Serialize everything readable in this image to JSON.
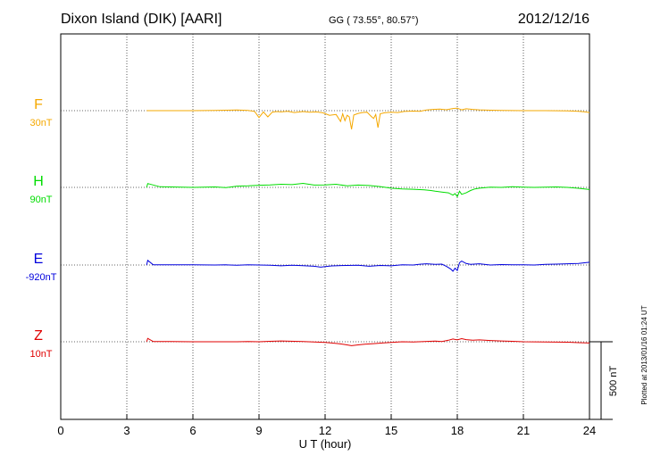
{
  "header": {
    "station": "Dixon Island (DIK)  [AARI]",
    "coords": "GG ( 73.55°,  80.57°)",
    "date": "2012/12/16"
  },
  "footer": {
    "plotted": "Plotted at 2013/01/16 01:24 UT"
  },
  "chart_data": {
    "type": "line",
    "xlabel": "U T (hour)",
    "xlim": [
      0,
      24
    ],
    "xticks": [
      0,
      3,
      6,
      9,
      12,
      15,
      18,
      21,
      24
    ],
    "scale_bar": "500 nT",
    "series": [
      {
        "name": "F",
        "baseline": "30nT",
        "color": "#f5a800",
        "x": [
          3.9,
          5,
          6,
          7,
          7.5,
          8,
          8.5,
          8.8,
          9,
          9.2,
          9.4,
          9.6,
          9.8,
          10,
          10.3,
          10.6,
          11,
          11.3,
          11.6,
          11.9,
          12.2,
          12.5,
          12.7,
          12.8,
          12.9,
          13,
          13.1,
          13.2,
          13.3,
          13.5,
          13.7,
          13.9,
          14.1,
          14.2,
          14.3,
          14.4,
          14.5,
          14.7,
          15,
          15.3,
          15.6,
          16,
          16.3,
          16.6,
          16.9,
          17.2,
          17.5,
          17.8,
          18,
          18.2,
          18.4,
          18.7,
          19,
          19.5,
          20,
          21,
          22,
          23,
          23.5,
          23.8,
          24
        ],
        "y": [
          0,
          0,
          0,
          2,
          3,
          4,
          2,
          -5,
          -45,
          -8,
          -40,
          -10,
          -6,
          -8,
          -4,
          -12,
          -6,
          -10,
          -8,
          -14,
          -30,
          -25,
          -70,
          -20,
          -65,
          -30,
          -40,
          -120,
          -28,
          -18,
          -12,
          -10,
          -38,
          -50,
          -25,
          -110,
          -20,
          -14,
          -10,
          -12,
          -5,
          -3,
          -4,
          4,
          8,
          10,
          6,
          14,
          16,
          5,
          12,
          8,
          5,
          3,
          2,
          0,
          0,
          -2,
          -4,
          -8,
          -12
        ]
      },
      {
        "name": "H",
        "baseline": "90nT",
        "color": "#00dd00",
        "x": [
          3.9,
          3.95,
          4.5,
          5,
          6,
          7,
          7.5,
          8,
          8.5,
          9,
          9.5,
          10,
          10.5,
          11,
          11.5,
          12,
          12.5,
          13,
          13.5,
          14,
          14.5,
          15,
          15.5,
          16,
          16.5,
          16.8,
          17,
          17.3,
          17.6,
          17.8,
          17.9,
          18,
          18.1,
          18.2,
          18.4,
          18.6,
          18.8,
          19,
          19.5,
          20,
          20.5,
          21,
          21.5,
          22,
          22.5,
          23,
          23.5,
          24
        ],
        "y": [
          0,
          25,
          4,
          3,
          0,
          3,
          -2,
          8,
          10,
          14,
          16,
          20,
          18,
          26,
          15,
          16,
          20,
          10,
          15,
          12,
          5,
          -5,
          -10,
          -12,
          -16,
          -20,
          -25,
          -30,
          -35,
          -50,
          -40,
          -60,
          -25,
          -45,
          -35,
          -20,
          -10,
          -5,
          2,
          0,
          4,
          2,
          0,
          2,
          3,
          0,
          -6,
          -14
        ]
      },
      {
        "name": "E",
        "baseline": "-920nT",
        "color": "#0000dd",
        "x": [
          3.9,
          3.95,
          4.2,
          5,
          6,
          7,
          7.5,
          8,
          8.5,
          9,
          9.5,
          10,
          10.5,
          11,
          11.5,
          11.8,
          12,
          12.3,
          12.6,
          13,
          13.5,
          14,
          14.5,
          15,
          15.5,
          16,
          16.3,
          16.6,
          17,
          17.3,
          17.5,
          17.7,
          17.8,
          17.9,
          18,
          18.1,
          18.2,
          18.4,
          18.6,
          19,
          19.5,
          20,
          20.5,
          21,
          21.5,
          22,
          22.5,
          23,
          23.5,
          24
        ],
        "y": [
          0,
          30,
          1,
          1,
          2,
          0,
          1,
          -2,
          1,
          0,
          -2,
          -5,
          -2,
          -4,
          -8,
          -14,
          -10,
          -6,
          -4,
          -3,
          -2,
          -8,
          -3,
          -5,
          2,
          0,
          5,
          8,
          4,
          6,
          -8,
          -25,
          -40,
          -20,
          -35,
          15,
          25,
          10,
          4,
          8,
          0,
          3,
          1,
          2,
          0,
          4,
          6,
          8,
          10,
          18
        ]
      },
      {
        "name": "Z",
        "baseline": "10nT",
        "color": "#e00000",
        "x": [
          3.9,
          3.95,
          4.2,
          5,
          6,
          7,
          7.5,
          8,
          8.5,
          9,
          9.5,
          10,
          11,
          11.5,
          12,
          12.3,
          12.6,
          12.9,
          13.2,
          13.5,
          13.8,
          14.2,
          14.6,
          15,
          15.5,
          16,
          16.5,
          17,
          17.3,
          17.6,
          17.8,
          18,
          18.2,
          18.4,
          18.7,
          19,
          19.5,
          20,
          20.5,
          21,
          22,
          23,
          23.5,
          24
        ],
        "y": [
          0,
          22,
          1,
          1,
          0,
          0,
          0,
          0,
          2,
          0,
          3,
          5,
          2,
          -1,
          -4,
          -8,
          -12,
          -18,
          -25,
          -20,
          -16,
          -12,
          -8,
          -4,
          0,
          -2,
          2,
          4,
          1,
          10,
          18,
          12,
          20,
          14,
          10,
          12,
          8,
          5,
          3,
          0,
          -2,
          -3,
          -6,
          -8
        ]
      }
    ]
  }
}
